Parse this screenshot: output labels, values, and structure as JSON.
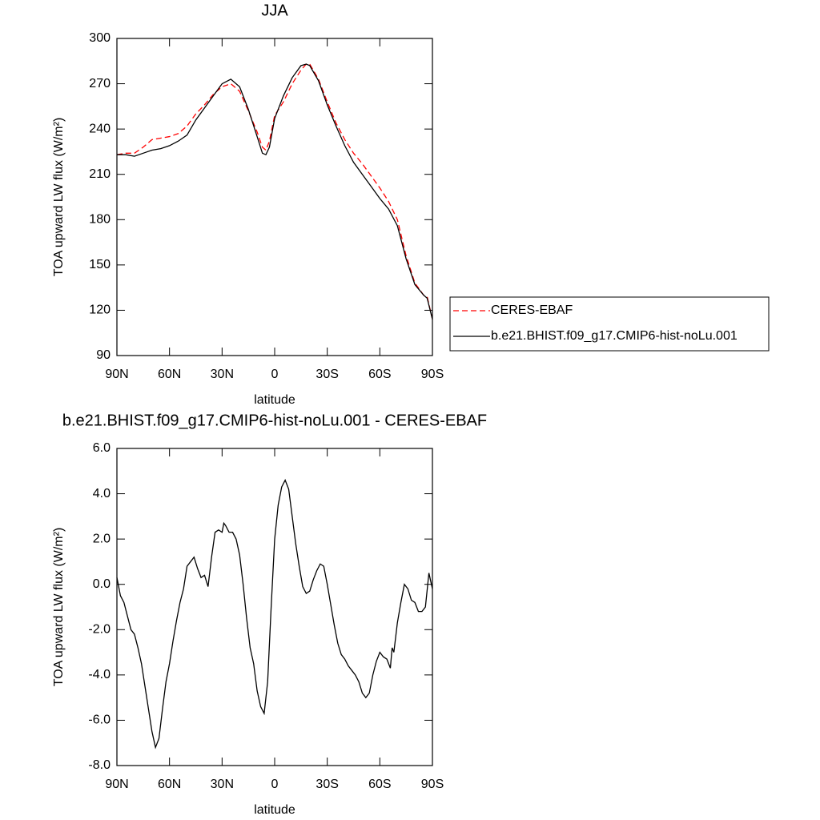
{
  "chart_data": [
    {
      "type": "line",
      "title": "JJA",
      "x_label": "latitude",
      "y_label": "TOA upward LW flux (W/m²)",
      "x": [
        90,
        85,
        80,
        75,
        70,
        65,
        60,
        55,
        50,
        45,
        40,
        35,
        30,
        25,
        20,
        15,
        10,
        7,
        5,
        3,
        0,
        -5,
        -10,
        -15,
        -18,
        -20,
        -25,
        -30,
        -35,
        -40,
        -45,
        -50,
        -55,
        -60,
        -65,
        -70,
        -75,
        -80,
        -85,
        -87,
        -90
      ],
      "series": [
        {
          "name": "CERES-EBAF",
          "color": "#ff0000",
          "dash": true,
          "values": [
            223,
            224,
            224,
            228,
            233,
            234,
            235,
            237,
            242,
            250,
            256,
            263,
            268,
            270,
            265,
            252,
            238,
            228,
            226,
            232,
            249,
            258,
            270,
            279,
            283,
            283,
            273,
            258,
            244,
            233,
            224,
            217,
            209,
            201,
            192,
            180,
            156,
            138,
            130,
            129,
            114
          ]
        },
        {
          "name": "b.e21.BHIST.f09_g17.CMIP6-hist-noLu.001",
          "color": "#000000",
          "dash": false,
          "values": [
            223,
            223,
            222,
            224,
            226,
            227,
            229,
            232,
            236,
            246,
            254,
            262,
            270,
            273,
            268,
            253,
            235,
            224,
            223,
            228,
            247,
            262,
            274,
            282,
            283,
            282,
            272,
            256,
            242,
            229,
            218,
            210,
            202,
            194,
            187,
            176,
            154,
            137,
            130,
            128,
            114
          ]
        }
      ],
      "xlim": [
        90,
        -90
      ],
      "xticks": [
        {
          "value": 90,
          "label": "90N"
        },
        {
          "value": 60,
          "label": "60N"
        },
        {
          "value": 30,
          "label": "30N"
        },
        0,
        {
          "value": -30,
          "label": "30S"
        },
        {
          "value": -60,
          "label": "60S"
        },
        {
          "value": -90,
          "label": "90S"
        }
      ],
      "ylim": [
        90,
        300
      ],
      "yticks": [
        90,
        120,
        150,
        180,
        210,
        240,
        270,
        300
      ],
      "legend": "right"
    },
    {
      "type": "line",
      "title": "b.e21.BHIST.f09_g17.CMIP6-hist-noLu.001 - CERES-EBAF",
      "x_label": "latitude",
      "y_label": "TOA upward LW flux (W/m²)",
      "x": [
        90,
        88,
        86,
        84,
        82,
        80,
        78,
        76,
        74,
        72,
        70,
        68,
        66,
        64,
        62,
        60,
        58,
        56,
        54,
        52,
        50,
        48,
        46,
        44,
        42,
        40,
        38,
        36,
        34,
        32,
        30,
        29,
        28,
        26,
        24,
        22,
        20,
        18,
        16,
        14,
        12,
        10,
        8,
        6,
        4,
        2,
        0,
        -2,
        -4,
        -6,
        -8,
        -10,
        -12,
        -14,
        -16,
        -18,
        -20,
        -22,
        -24,
        -26,
        -28,
        -30,
        -32,
        -34,
        -36,
        -38,
        -40,
        -42,
        -44,
        -46,
        -48,
        -50,
        -52,
        -54,
        -56,
        -58,
        -60,
        -62,
        -64,
        -66,
        -67,
        -68,
        -70,
        -72,
        -74,
        -76,
        -78,
        -80,
        -82,
        -84,
        -86,
        -88,
        -90
      ],
      "series": [
        {
          "color": "#000000",
          "dash": false,
          "values": [
            0.3,
            -0.5,
            -0.8,
            -1.4,
            -2.0,
            -2.2,
            -2.8,
            -3.5,
            -4.5,
            -5.5,
            -6.5,
            -7.2,
            -6.8,
            -5.5,
            -4.3,
            -3.5,
            -2.5,
            -1.6,
            -0.8,
            -0.2,
            0.8,
            1.0,
            1.2,
            0.7,
            0.3,
            0.4,
            -0.1,
            1.2,
            2.3,
            2.4,
            2.3,
            2.7,
            2.6,
            2.3,
            2.3,
            2.0,
            1.3,
            0.0,
            -1.5,
            -2.8,
            -3.5,
            -4.7,
            -5.4,
            -5.7,
            -4.3,
            -1.0,
            2.0,
            3.5,
            4.3,
            4.6,
            4.2,
            3.0,
            1.8,
            0.8,
            -0.1,
            -0.4,
            -0.3,
            0.2,
            0.6,
            0.9,
            0.8,
            0.0,
            -0.9,
            -1.8,
            -2.6,
            -3.1,
            -3.3,
            -3.6,
            -3.8,
            -4.0,
            -4.3,
            -4.8,
            -5.0,
            -4.8,
            -4.0,
            -3.4,
            -3.0,
            -3.2,
            -3.3,
            -3.7,
            -2.8,
            -3.0,
            -1.7,
            -0.8,
            0.0,
            -0.2,
            -0.7,
            -0.8,
            -1.2,
            -1.2,
            -1.0,
            0.5,
            -0.2
          ]
        }
      ],
      "xlim": [
        90,
        -90
      ],
      "xticks": [
        {
          "value": 90,
          "label": "90N"
        },
        {
          "value": 60,
          "label": "60N"
        },
        {
          "value": 30,
          "label": "30N"
        },
        0,
        {
          "value": -30,
          "label": "30S"
        },
        {
          "value": -60,
          "label": "60S"
        },
        {
          "value": -90,
          "label": "90S"
        }
      ],
      "ylim": [
        -8,
        6
      ],
      "yticks": [
        {
          "value": -8,
          "label": "-8.0"
        },
        {
          "value": -6,
          "label": "-6.0"
        },
        {
          "value": -4,
          "label": "-4.0"
        },
        {
          "value": -2,
          "label": "-2.0"
        },
        {
          "value": 0,
          "label": "0.0"
        },
        {
          "value": 2,
          "label": "2.0"
        },
        {
          "value": 4,
          "label": "4.0"
        },
        {
          "value": 6,
          "label": "6.0"
        }
      ]
    }
  ]
}
